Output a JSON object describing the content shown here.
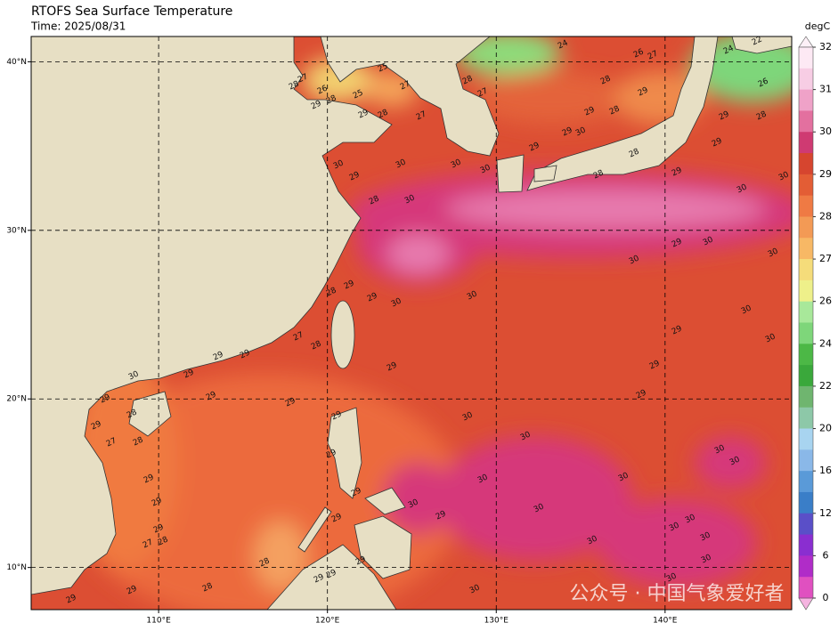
{
  "header": {
    "title": "RTOFS Sea Surface Temperature",
    "time": "Time: 2025/08/31"
  },
  "map": {
    "lon_range": [
      102.45,
      147.5
    ],
    "lat_range": [
      7.5,
      41.5
    ],
    "lon_ticks": [
      {
        "value": 110,
        "label": "110°E"
      },
      {
        "value": 120,
        "label": "120°E"
      },
      {
        "value": 130,
        "label": "130°E"
      },
      {
        "value": 140,
        "label": "140°E"
      }
    ],
    "lat_ticks": [
      {
        "value": 10,
        "label": "10°N"
      },
      {
        "value": 20,
        "label": "20°N"
      },
      {
        "value": 30,
        "label": "30°N"
      },
      {
        "value": 40,
        "label": "40°N"
      }
    ],
    "contour_labels": [
      24,
      26,
      27,
      22,
      24,
      26,
      25,
      28,
      27,
      26,
      25,
      27,
      29,
      28,
      29,
      28,
      27,
      28,
      27,
      28,
      29,
      29,
      28,
      29,
      28,
      30,
      29,
      28,
      30,
      30,
      30,
      30,
      29,
      29,
      30,
      28,
      28,
      29,
      29,
      30,
      30,
      29,
      30,
      30,
      30,
      30,
      29,
      29,
      28,
      27,
      28,
      30,
      29,
      29,
      29,
      29,
      30,
      29,
      29,
      29,
      28,
      29,
      28,
      27,
      30,
      29,
      29,
      29,
      30,
      30,
      30,
      29,
      29,
      29,
      30,
      30,
      30,
      30,
      30,
      30,
      29,
      29,
      29,
      30,
      30,
      30,
      30,
      30,
      29,
      29,
      29,
      28,
      27,
      28,
      29,
      29,
      28,
      29,
      29,
      30,
      30
    ]
  },
  "colorbar": {
    "unit": "degC",
    "ticks": [
      32,
      31,
      30,
      29,
      28,
      27,
      26,
      24,
      22,
      20,
      16,
      12,
      6,
      0
    ]
  },
  "watermark": "公众号 · 中国气象爱好者"
}
